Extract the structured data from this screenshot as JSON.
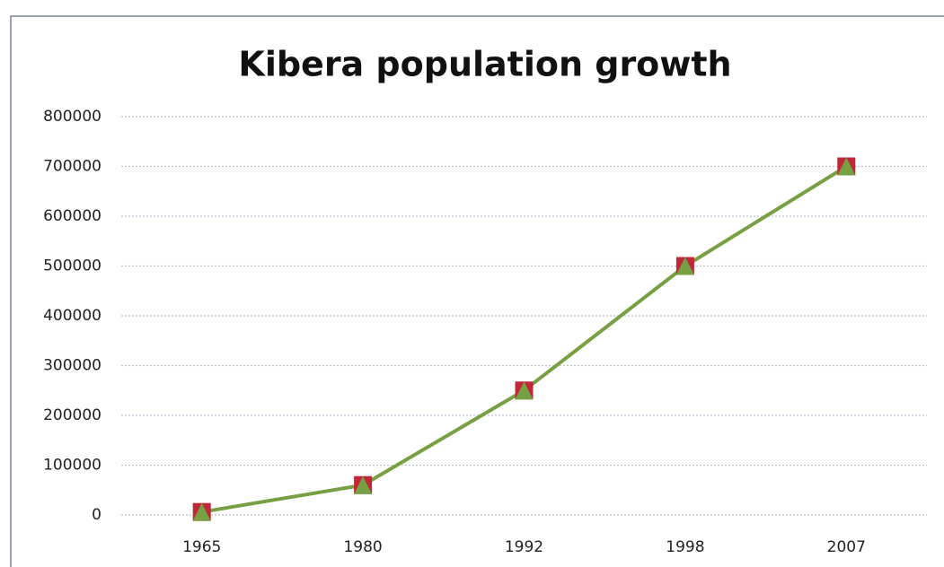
{
  "chart_data": {
    "type": "line",
    "title": "Kibera population growth",
    "categories": [
      "1965",
      "1980",
      "1992",
      "1998",
      "2007"
    ],
    "series": [
      {
        "name": "Population",
        "color": "#77a043",
        "marker_color": "#c0283a",
        "values": [
          6000,
          60000,
          250000,
          500000,
          700000
        ]
      }
    ],
    "ylim": [
      0,
      800000
    ],
    "yticks": [
      0,
      100000,
      200000,
      300000,
      400000,
      500000,
      600000,
      700000,
      800000
    ],
    "grid": true
  }
}
